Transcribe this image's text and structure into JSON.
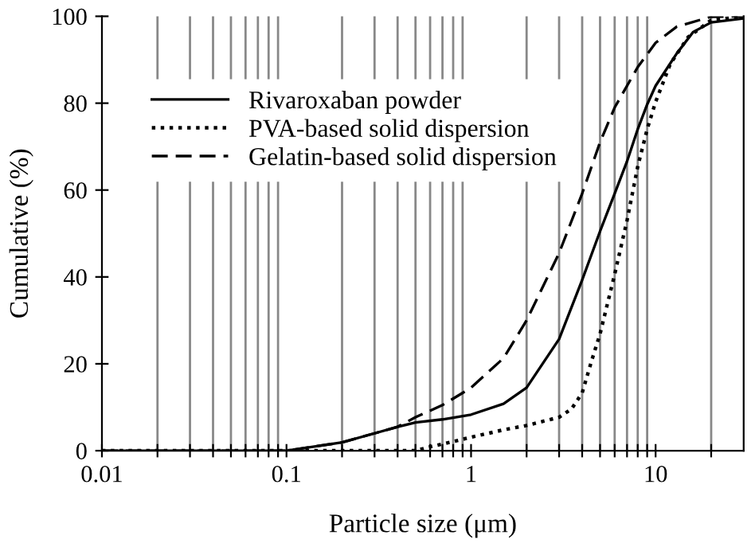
{
  "chart_data": {
    "type": "line",
    "xlabel": "Particle size (μm)",
    "ylabel": "Cumulative (%)",
    "log": "x",
    "xlim": [
      0.01,
      30
    ],
    "ylim": [
      0,
      100
    ],
    "xticks": [
      0.01,
      {
        "value": 0.02,
        "label": null
      },
      {
        "value": 0.03,
        "label": null
      },
      {
        "value": 0.04,
        "label": null
      },
      {
        "value": 0.05,
        "label": null
      },
      {
        "value": 0.06,
        "label": null
      },
      {
        "value": 0.07,
        "label": null
      },
      {
        "value": 0.08,
        "label": null
      },
      {
        "value": 0.09,
        "label": null
      },
      0.1,
      {
        "value": 0.2,
        "label": null
      },
      {
        "value": 0.3,
        "label": null
      },
      {
        "value": 0.4,
        "label": null
      },
      {
        "value": 0.5,
        "label": null
      },
      {
        "value": 0.6,
        "label": null
      },
      {
        "value": 0.7,
        "label": null
      },
      {
        "value": 0.8,
        "label": null
      },
      {
        "value": 0.9,
        "label": null
      },
      1,
      {
        "value": 2,
        "label": null
      },
      {
        "value": 3,
        "label": null
      },
      {
        "value": 4,
        "label": null
      },
      {
        "value": 5,
        "label": null
      },
      {
        "value": 6,
        "label": null
      },
      {
        "value": 7,
        "label": null
      },
      {
        "value": 8,
        "label": null
      },
      {
        "value": 9,
        "label": null
      },
      10,
      {
        "value": 20,
        "label": null
      }
    ],
    "yticks": [
      0,
      20,
      40,
      60,
      80,
      100
    ],
    "grid": "x",
    "legend": "top left",
    "series": [
      {
        "name": "Rivaroxaban powder",
        "color": "#000000",
        "line_style": "solid",
        "x": [
          0.01,
          0.1,
          0.2,
          0.3,
          0.4,
          0.5,
          0.7,
          1,
          1.5,
          2,
          3,
          4,
          5,
          6,
          7,
          8,
          9,
          10,
          13,
          16,
          20,
          30
        ],
        "values": [
          0,
          0,
          1.9,
          4,
          5.5,
          6.5,
          7.2,
          8.3,
          10.8,
          14.5,
          25.7,
          39.3,
          50.5,
          59.2,
          66.6,
          74,
          79.7,
          84,
          91.4,
          96.4,
          98.6,
          99.5
        ]
      },
      {
        "name": "PVA-based solid dispersion",
        "color": "#000000",
        "line_style": "dotted",
        "x": [
          0.01,
          0.1,
          0.3,
          0.5,
          0.6,
          0.8,
          1,
          1.5,
          2,
          3,
          3.5,
          4,
          4.5,
          5,
          6,
          7,
          8,
          9,
          10,
          12,
          15,
          20,
          30
        ],
        "values": [
          0,
          0,
          0,
          0,
          0.9,
          2.1,
          3.1,
          4.8,
          5.8,
          7.7,
          9.6,
          13.3,
          20.7,
          26.9,
          40.6,
          53,
          65.4,
          74,
          80.3,
          89,
          95.2,
          99.1,
          100
        ]
      },
      {
        "name": "Gelatin-based solid dispersion",
        "color": "#000000",
        "line_style": "dashed",
        "x": [
          0.01,
          0.1,
          0.2,
          0.3,
          0.4,
          0.5,
          0.7,
          0.9,
          1,
          1.5,
          2,
          3,
          4,
          5,
          6,
          8,
          10,
          13,
          20,
          30
        ],
        "values": [
          0,
          0,
          1.9,
          4,
          5.5,
          7.7,
          10.5,
          13.3,
          14.5,
          21.3,
          30,
          45.5,
          59.2,
          71,
          79,
          88.3,
          93.9,
          97.6,
          99.9,
          100
        ]
      }
    ]
  }
}
